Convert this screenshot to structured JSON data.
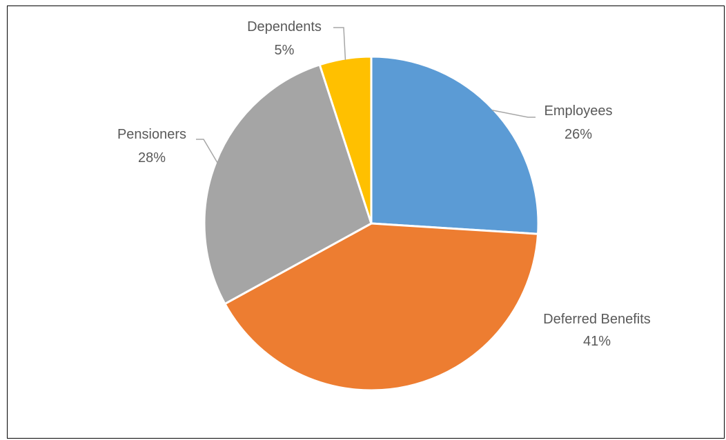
{
  "chart_data": {
    "type": "pie",
    "title": "",
    "slices": [
      {
        "name": "Employees",
        "pct_label": "26%",
        "value": 26,
        "color": "#5b9bd5"
      },
      {
        "name": "Deferred Benefits",
        "pct_label": "41%",
        "value": 41,
        "color": "#ed7d31"
      },
      {
        "name": "Pensioners",
        "pct_label": "28%",
        "value": 28,
        "color": "#a5a5a5"
      },
      {
        "name": "Dependents",
        "pct_label": "5%",
        "value": 5,
        "color": "#ffc000"
      }
    ],
    "start_angle_deg": 0,
    "direction": "clockwise",
    "data_labels": "outside with leader lines",
    "legend": "none"
  }
}
